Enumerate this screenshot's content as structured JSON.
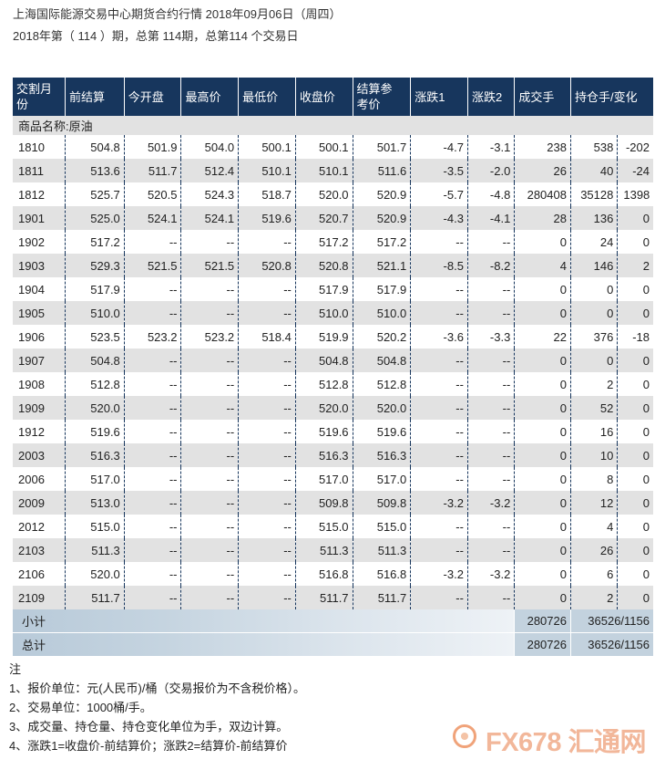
{
  "header": {
    "title": "上海国际能源交易中心期货合约行情 2018年09月06日（周四）",
    "subtitle": "2018年第（ 114 ）期，总第 114期，总第114 个交易日"
  },
  "table": {
    "columns": [
      "交割月份",
      "前结算",
      "今开盘",
      "最高价",
      "最低价",
      "收盘价",
      "结算参考价",
      "涨跌1",
      "涨跌2",
      "成交手",
      "持仓手",
      "变化"
    ],
    "header_labels": [
      "交割月\n份",
      "前结算",
      "今开盘",
      "最高价",
      "最低价",
      "收盘价",
      "结算参\n考价",
      "涨跌1",
      "涨跌2",
      "成交手",
      "持仓手/变化"
    ],
    "product_label": "商品名称:原油",
    "rows": [
      [
        "1810",
        "504.8",
        "501.9",
        "504.0",
        "500.1",
        "500.1",
        "501.7",
        "-4.7",
        "-3.1",
        "238",
        "538",
        "-202"
      ],
      [
        "1811",
        "513.6",
        "511.7",
        "512.4",
        "510.1",
        "510.1",
        "511.6",
        "-3.5",
        "-2.0",
        "26",
        "40",
        "-24"
      ],
      [
        "1812",
        "525.7",
        "520.5",
        "524.3",
        "518.7",
        "520.0",
        "520.9",
        "-5.7",
        "-4.8",
        "280408",
        "35128",
        "1398"
      ],
      [
        "1901",
        "525.0",
        "524.1",
        "524.1",
        "519.6",
        "520.7",
        "520.9",
        "-4.3",
        "-4.1",
        "28",
        "136",
        "0"
      ],
      [
        "1902",
        "517.2",
        "--",
        "--",
        "--",
        "517.2",
        "517.2",
        "--",
        "--",
        "0",
        "24",
        "0"
      ],
      [
        "1903",
        "529.3",
        "521.5",
        "521.5",
        "520.8",
        "520.8",
        "521.1",
        "-8.5",
        "-8.2",
        "4",
        "146",
        "2"
      ],
      [
        "1904",
        "517.9",
        "--",
        "--",
        "--",
        "517.9",
        "517.9",
        "--",
        "--",
        "0",
        "0",
        "0"
      ],
      [
        "1905",
        "510.0",
        "--",
        "--",
        "--",
        "510.0",
        "510.0",
        "--",
        "--",
        "0",
        "0",
        "0"
      ],
      [
        "1906",
        "523.5",
        "523.2",
        "523.2",
        "518.4",
        "519.9",
        "520.2",
        "-3.6",
        "-3.3",
        "22",
        "376",
        "-18"
      ],
      [
        "1907",
        "504.8",
        "--",
        "--",
        "--",
        "504.8",
        "504.8",
        "--",
        "--",
        "0",
        "0",
        "0"
      ],
      [
        "1908",
        "512.8",
        "--",
        "--",
        "--",
        "512.8",
        "512.8",
        "--",
        "--",
        "0",
        "2",
        "0"
      ],
      [
        "1909",
        "520.0",
        "--",
        "--",
        "--",
        "520.0",
        "520.0",
        "--",
        "--",
        "0",
        "52",
        "0"
      ],
      [
        "1912",
        "519.6",
        "--",
        "--",
        "--",
        "519.6",
        "519.6",
        "--",
        "--",
        "0",
        "16",
        "0"
      ],
      [
        "2003",
        "516.3",
        "--",
        "--",
        "--",
        "516.3",
        "516.3",
        "--",
        "--",
        "0",
        "10",
        "0"
      ],
      [
        "2006",
        "517.0",
        "--",
        "--",
        "--",
        "517.0",
        "517.0",
        "--",
        "--",
        "0",
        "8",
        "0"
      ],
      [
        "2009",
        "513.0",
        "--",
        "--",
        "--",
        "509.8",
        "509.8",
        "-3.2",
        "-3.2",
        "0",
        "12",
        "0"
      ],
      [
        "2012",
        "515.0",
        "--",
        "--",
        "--",
        "515.0",
        "515.0",
        "--",
        "--",
        "0",
        "4",
        "0"
      ],
      [
        "2103",
        "511.3",
        "--",
        "--",
        "--",
        "511.3",
        "511.3",
        "--",
        "--",
        "0",
        "26",
        "0"
      ],
      [
        "2106",
        "520.0",
        "--",
        "--",
        "--",
        "516.8",
        "516.8",
        "-3.2",
        "-3.2",
        "0",
        "6",
        "0"
      ],
      [
        "2109",
        "511.7",
        "--",
        "--",
        "--",
        "511.7",
        "511.7",
        "--",
        "--",
        "0",
        "2",
        "0"
      ]
    ],
    "subtotal": {
      "label": "小计",
      "volume": "280726",
      "open_interest": "36526/1156"
    },
    "total": {
      "label": "总计",
      "volume": "280726",
      "open_interest": "36526/1156"
    }
  },
  "notes": {
    "heading": "注",
    "items": [
      "1、报价单位：元(人民币)/桶（交易报价为不含税价格）。",
      "2、交易单位：1000桶/手。",
      "3、成交量、持仓量、持仓变化单位为手，双边计算。",
      "4、涨跌1=收盘价-前结算价；涨跌2=结算价-前结算价"
    ]
  },
  "watermark": {
    "text": "FX678 汇通网",
    "color": "#f2b79a"
  }
}
